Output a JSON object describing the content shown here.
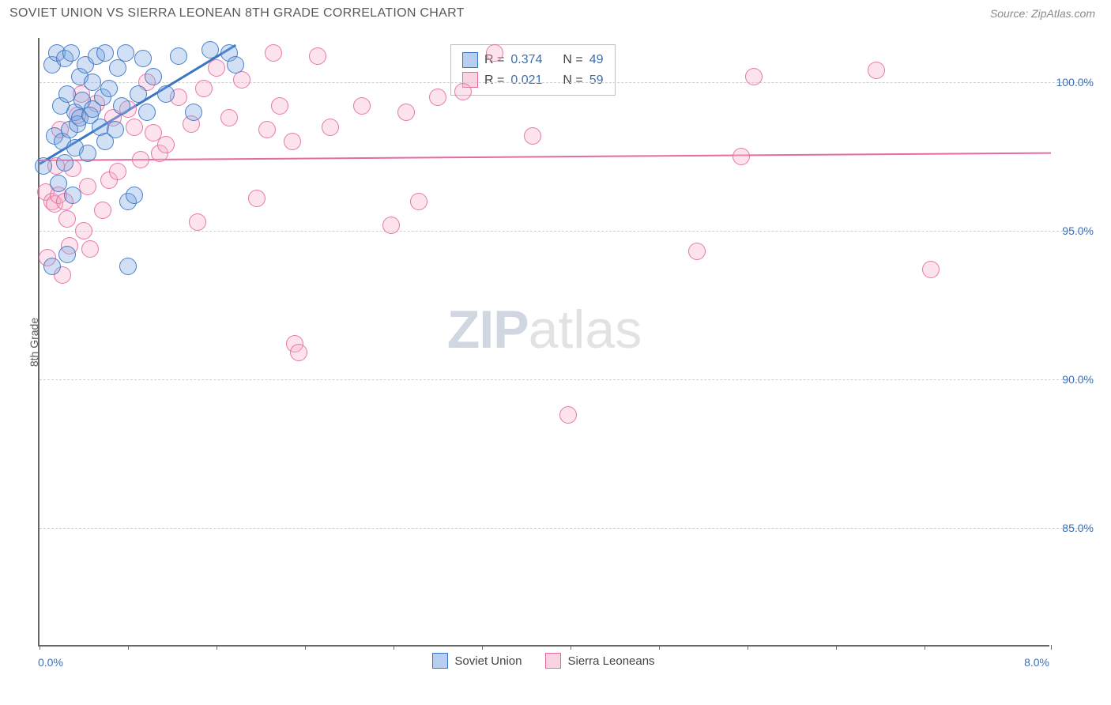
{
  "header": {
    "title": "SOVIET UNION VS SIERRA LEONEAN 8TH GRADE CORRELATION CHART",
    "source_label": "Source: ZipAtlas.com"
  },
  "watermark": {
    "part1": "ZIP",
    "part2": "atlas"
  },
  "chart": {
    "type": "scatter",
    "background_color": "#ffffff",
    "grid_color": "#cfcfcf",
    "axis_color": "#666666",
    "label_color": "#3b6fb6",
    "text_color": "#5a5a5a",
    "y_axis_title": "8th Grade",
    "title_fontsize": 16,
    "label_fontsize": 14,
    "tick_fontsize": 14,
    "point_radius": 11,
    "point_opacity_fill": 0.35,
    "point_opacity_stroke": 0.9,
    "xlim": [
      0.0,
      8.0
    ],
    "ylim": [
      81.0,
      101.5
    ],
    "x_ticks": [
      0.0,
      0.7,
      1.4,
      2.1,
      2.8,
      3.5,
      4.2,
      4.9,
      5.6,
      6.3,
      7.0,
      8.0
    ],
    "x_tick_labels": {
      "start": "0.0%",
      "end": "8.0%"
    },
    "y_gridlines": [
      85.0,
      90.0,
      95.0,
      100.0
    ],
    "y_tick_labels": [
      "85.0%",
      "90.0%",
      "95.0%",
      "100.0%"
    ],
    "series": [
      {
        "name": "Soviet Union",
        "fill_color": "#7aa7e0",
        "stroke_color": "#3a76c4",
        "r_value": "0.374",
        "n_value": "49",
        "trend": {
          "x1": 0.0,
          "y1": 97.3,
          "x2": 1.55,
          "y2": 101.3,
          "width": 2.5
        },
        "points": [
          [
            0.03,
            97.2
          ],
          [
            0.1,
            100.6
          ],
          [
            0.1,
            93.8
          ],
          [
            0.12,
            98.2
          ],
          [
            0.14,
            101.0
          ],
          [
            0.15,
            96.6
          ],
          [
            0.17,
            99.2
          ],
          [
            0.18,
            98.0
          ],
          [
            0.2,
            97.3
          ],
          [
            0.2,
            100.8
          ],
          [
            0.22,
            94.2
          ],
          [
            0.22,
            99.6
          ],
          [
            0.24,
            98.4
          ],
          [
            0.25,
            101.0
          ],
          [
            0.26,
            96.2
          ],
          [
            0.28,
            99.0
          ],
          [
            0.28,
            97.8
          ],
          [
            0.3,
            98.6
          ],
          [
            0.32,
            100.2
          ],
          [
            0.32,
            98.8
          ],
          [
            0.34,
            99.4
          ],
          [
            0.36,
            100.6
          ],
          [
            0.38,
            97.6
          ],
          [
            0.4,
            98.9
          ],
          [
            0.42,
            100.0
          ],
          [
            0.42,
            99.1
          ],
          [
            0.45,
            100.9
          ],
          [
            0.48,
            98.5
          ],
          [
            0.5,
            99.5
          ],
          [
            0.52,
            98.0
          ],
          [
            0.52,
            101.0
          ],
          [
            0.55,
            99.8
          ],
          [
            0.6,
            98.4
          ],
          [
            0.62,
            100.5
          ],
          [
            0.65,
            99.2
          ],
          [
            0.68,
            101.0
          ],
          [
            0.7,
            96.0
          ],
          [
            0.7,
            93.8
          ],
          [
            0.75,
            96.2
          ],
          [
            0.78,
            99.6
          ],
          [
            0.82,
            100.8
          ],
          [
            0.85,
            99.0
          ],
          [
            0.9,
            100.2
          ],
          [
            1.0,
            99.6
          ],
          [
            1.1,
            100.9
          ],
          [
            1.22,
            99.0
          ],
          [
            1.35,
            101.1
          ],
          [
            1.5,
            101.0
          ],
          [
            1.55,
            100.6
          ]
        ]
      },
      {
        "name": "Sierra Leoneans",
        "fill_color": "#f5aecb",
        "stroke_color": "#e76aa0",
        "r_value": "0.021",
        "n_value": "59",
        "trend": {
          "x1": 0.0,
          "y1": 97.4,
          "x2": 8.0,
          "y2": 97.65,
          "width": 2
        },
        "points": [
          [
            0.05,
            96.3
          ],
          [
            0.06,
            94.1
          ],
          [
            0.1,
            96.0
          ],
          [
            0.12,
            95.9
          ],
          [
            0.13,
            97.2
          ],
          [
            0.15,
            96.2
          ],
          [
            0.16,
            98.4
          ],
          [
            0.18,
            93.5
          ],
          [
            0.2,
            96.0
          ],
          [
            0.22,
            95.4
          ],
          [
            0.24,
            94.5
          ],
          [
            0.26,
            97.1
          ],
          [
            0.3,
            98.9
          ],
          [
            0.33,
            99.6
          ],
          [
            0.35,
            95.0
          ],
          [
            0.38,
            96.5
          ],
          [
            0.4,
            94.4
          ],
          [
            0.45,
            99.3
          ],
          [
            0.5,
            95.7
          ],
          [
            0.55,
            96.7
          ],
          [
            0.58,
            98.8
          ],
          [
            0.62,
            97.0
          ],
          [
            0.7,
            99.1
          ],
          [
            0.75,
            98.5
          ],
          [
            0.8,
            97.4
          ],
          [
            0.85,
            100.0
          ],
          [
            0.9,
            98.3
          ],
          [
            0.95,
            97.6
          ],
          [
            1.0,
            97.9
          ],
          [
            1.1,
            99.5
          ],
          [
            1.2,
            98.6
          ],
          [
            1.25,
            95.3
          ],
          [
            1.3,
            99.8
          ],
          [
            1.4,
            100.5
          ],
          [
            1.5,
            98.8
          ],
          [
            1.6,
            100.1
          ],
          [
            1.72,
            96.1
          ],
          [
            1.8,
            98.4
          ],
          [
            1.85,
            101.0
          ],
          [
            1.9,
            99.2
          ],
          [
            2.0,
            98.0
          ],
          [
            2.02,
            91.2
          ],
          [
            2.05,
            90.9
          ],
          [
            2.2,
            100.9
          ],
          [
            2.3,
            98.5
          ],
          [
            2.55,
            99.2
          ],
          [
            2.78,
            95.2
          ],
          [
            2.9,
            99.0
          ],
          [
            3.0,
            96.0
          ],
          [
            3.15,
            99.5
          ],
          [
            3.35,
            99.7
          ],
          [
            3.6,
            101.0
          ],
          [
            3.9,
            98.2
          ],
          [
            4.18,
            88.8
          ],
          [
            5.2,
            94.3
          ],
          [
            5.55,
            97.5
          ],
          [
            5.65,
            100.2
          ],
          [
            6.62,
            100.4
          ],
          [
            7.05,
            93.7
          ]
        ]
      }
    ],
    "stats_box": {
      "R_label": "R =",
      "N_label": "N ="
    },
    "bottom_legend": [
      {
        "label": "Soviet Union",
        "fill": "#7aa7e0",
        "stroke": "#3a76c4"
      },
      {
        "label": "Sierra Leoneans",
        "fill": "#f5aecb",
        "stroke": "#e76aa0"
      }
    ]
  }
}
